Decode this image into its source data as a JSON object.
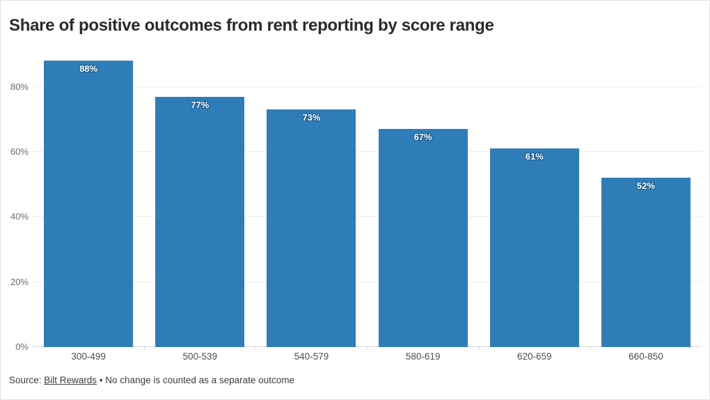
{
  "title": "Share of positive outcomes from rent reporting by score range",
  "source": {
    "prefix": "Source: ",
    "link_label": "Bilt Rewards",
    "separator": " • ",
    "note": "No change is counted as a separate outcome"
  },
  "chart_data": {
    "type": "bar",
    "title": "Share of positive outcomes from rent reporting by score range",
    "categories": [
      "300-499",
      "500-539",
      "540-579",
      "580-619",
      "620-659",
      "660-850"
    ],
    "values": [
      88,
      77,
      73,
      67,
      61,
      52
    ],
    "value_labels": [
      "88%",
      "77%",
      "73%",
      "67%",
      "61%",
      "52%"
    ],
    "xlabel": "",
    "ylabel": "",
    "ylim": [
      0,
      90
    ],
    "y_ticks": [
      {
        "value": 0,
        "label": "0%"
      },
      {
        "value": 20,
        "label": "20%"
      },
      {
        "value": 40,
        "label": "40%"
      },
      {
        "value": 60,
        "label": "60%"
      },
      {
        "value": 80,
        "label": "80%"
      }
    ],
    "grid": true,
    "legend": "none",
    "colors": {
      "bar": "#2f7db8",
      "bar_label_text": "#ffffff",
      "bar_label_halo": "#1a5c8c",
      "gridline": "#ececec",
      "baseline": "#d6d6d6",
      "title_text": "#2a2a2a",
      "axis_label_text": "#6b6b6b"
    }
  }
}
